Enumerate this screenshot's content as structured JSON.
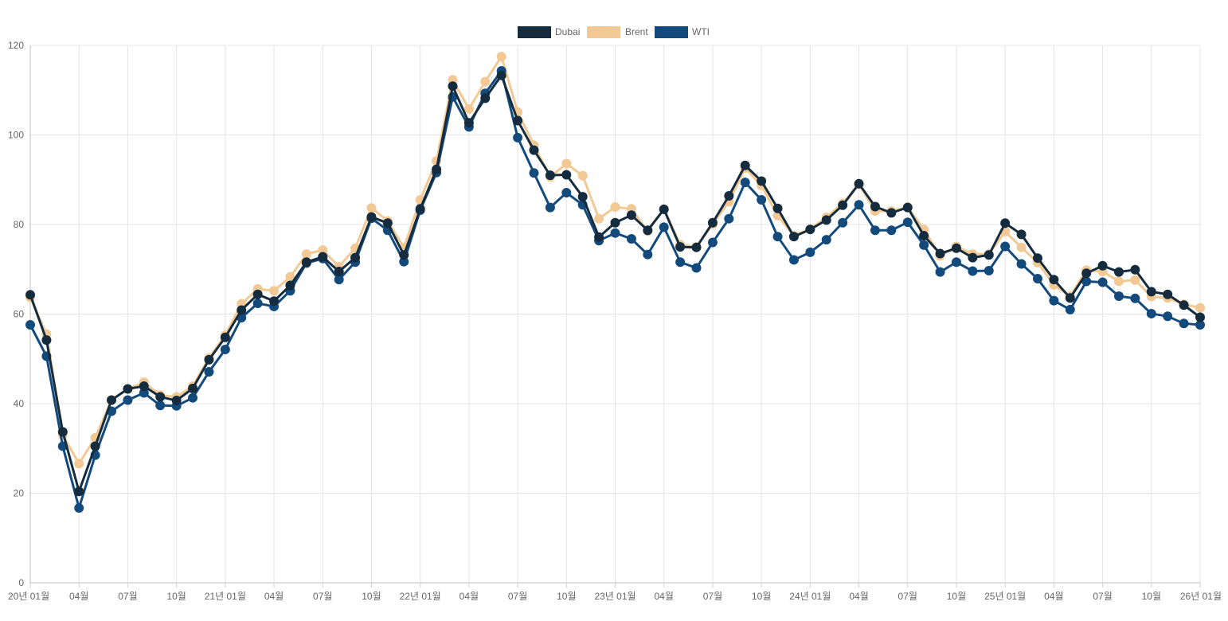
{
  "chart_data": {
    "type": "line",
    "title": "",
    "xlabel": "",
    "ylabel": "",
    "ylim": [
      0,
      120
    ],
    "yticks": [
      0,
      20,
      40,
      60,
      80,
      100,
      120
    ],
    "legend_position": "top-center",
    "grid": true,
    "x_tick_labels": [
      "20년 01월",
      "04월",
      "07월",
      "10월",
      "21년 01월",
      "04월",
      "07월",
      "10월",
      "22년 01월",
      "04월",
      "07월",
      "10월",
      "23년 01월",
      "04월",
      "07월",
      "10월",
      "24년 01월",
      "04월",
      "07월",
      "10월",
      "25년 01월",
      "04월",
      "07월",
      "10월",
      "26년 01월"
    ],
    "series": [
      {
        "name": "Brent",
        "color": "#f2c994",
        "values": [
          63.7,
          55.5,
          33.0,
          26.6,
          32.4,
          40.8,
          43.2,
          44.8,
          41.9,
          41.5,
          43.9,
          50.2,
          55.3,
          62.3,
          65.6,
          65.2,
          68.3,
          73.4,
          74.3,
          70.6,
          74.7,
          83.7,
          80.8,
          74.8,
          85.5,
          94.2,
          112.3,
          105.8,
          111.9,
          117.5,
          105.1,
          97.7,
          90.6,
          93.6,
          90.9,
          81.3,
          83.9,
          83.5,
          78.5,
          83.4,
          75.5,
          75.0,
          80.1,
          85.1,
          92.6,
          88.7,
          82.0,
          77.5,
          79.0,
          81.6,
          84.7,
          89.0,
          83.0,
          83.0,
          83.9,
          78.9,
          73.0,
          75.1,
          73.4,
          73.4,
          78.4,
          74.9,
          71.5,
          66.5,
          64.0,
          69.8,
          69.5,
          67.3,
          67.6,
          63.9,
          63.6,
          62.2,
          61.4
        ]
      },
      {
        "name": "WTI",
        "color": "#134a7c",
        "values": [
          57.6,
          50.6,
          30.5,
          16.7,
          28.5,
          38.3,
          40.8,
          42.4,
          39.6,
          39.5,
          41.3,
          47.1,
          52.1,
          59.2,
          62.4,
          61.7,
          65.2,
          71.4,
          72.4,
          67.7,
          71.6,
          81.4,
          78.7,
          71.7,
          83.2,
          91.6,
          108.5,
          101.8,
          109.3,
          114.3,
          99.4,
          91.5,
          83.8,
          87.1,
          84.4,
          76.4,
          78.1,
          76.8,
          73.3,
          79.4,
          71.6,
          70.3,
          76.0,
          81.3,
          89.4,
          85.5,
          77.3,
          72.1,
          73.8,
          76.6,
          80.4,
          84.4,
          78.7,
          78.7,
          80.5,
          75.4,
          69.4,
          71.6,
          69.6,
          69.7,
          75.1,
          71.2,
          67.9,
          63.0,
          61.0,
          67.3,
          67.1,
          64.0,
          63.5,
          60.1,
          59.5,
          57.9,
          57.6
        ]
      },
      {
        "name": "Dubai",
        "color": "#152b3e",
        "values": [
          64.3,
          54.2,
          33.7,
          20.4,
          30.5,
          40.8,
          43.3,
          43.9,
          41.5,
          40.7,
          43.4,
          49.8,
          54.8,
          60.9,
          64.4,
          62.9,
          66.4,
          71.6,
          72.8,
          69.5,
          72.6,
          81.7,
          80.3,
          73.2,
          83.5,
          92.3,
          110.9,
          102.7,
          108.2,
          113.3,
          103.2,
          96.6,
          91.0,
          91.1,
          86.2,
          77.2,
          80.4,
          82.1,
          78.7,
          83.4,
          75.0,
          74.9,
          80.4,
          86.4,
          93.2,
          89.7,
          83.6,
          77.3,
          78.9,
          81.0,
          84.3,
          89.1,
          84.0,
          82.6,
          83.8,
          77.5,
          73.5,
          74.7,
          72.6,
          73.2,
          80.3,
          77.8,
          72.5,
          67.7,
          63.6,
          69.1,
          70.8,
          69.4,
          69.9,
          65.0,
          64.4,
          62.0,
          59.3
        ]
      }
    ]
  },
  "legend": {
    "items": [
      {
        "label": "Dubai",
        "color": "#152b3e"
      },
      {
        "label": "Brent",
        "color": "#f2c994"
      },
      {
        "label": "WTI",
        "color": "#134a7c"
      }
    ]
  }
}
